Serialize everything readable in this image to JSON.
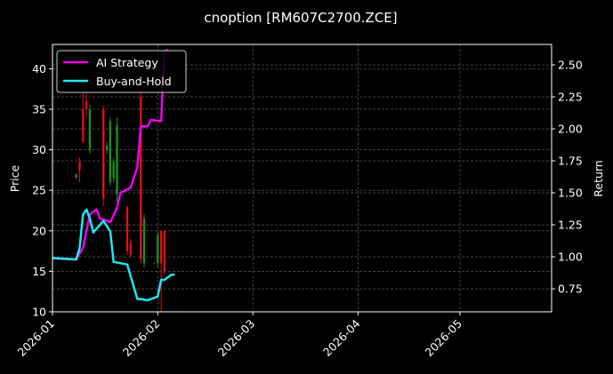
{
  "chart_data": {
    "type": "line",
    "title": "cnoption [RM607C2700.ZCE]",
    "xlabel": "",
    "ylabel": "Price",
    "y2label": "Return",
    "background": "#000000",
    "grid": true,
    "legend_position": "top-left",
    "xlim": [
      "2026-01-01",
      "2026-05-28"
    ],
    "ylim": [
      10,
      43
    ],
    "y2lim": [
      0.57,
      2.66
    ],
    "x_ticks": [
      "2026-01",
      "2026-02",
      "2026-03",
      "2026-04",
      "2026-05"
    ],
    "y_ticks": [
      10,
      15,
      20,
      25,
      30,
      35,
      40
    ],
    "y2_ticks": [
      0.75,
      1.0,
      1.25,
      1.5,
      1.75,
      2.0,
      2.25,
      2.5
    ],
    "candles": {
      "up_color": "#1e8f1e",
      "down_color": "#e01010",
      "data": [
        {
          "date": "2026-01-08",
          "open": 26.5,
          "high": 27.0,
          "low": 26.5,
          "close": 27.0
        },
        {
          "date": "2026-01-09",
          "open": 28.5,
          "high": 29.0,
          "low": 26.0,
          "close": 27.5
        },
        {
          "date": "2026-01-10",
          "open": 35.0,
          "high": 37.0,
          "low": 30.8,
          "close": 31.0
        },
        {
          "date": "2026-01-11",
          "open": 36.0,
          "high": 37.0,
          "low": 34.0,
          "close": 35.0
        },
        {
          "date": "2026-01-12",
          "open": 30.0,
          "high": 35.5,
          "low": 29.5,
          "close": 35.0
        },
        {
          "date": "2026-01-16",
          "open": 35.0,
          "high": 35.5,
          "low": 23.0,
          "close": 24.0
        },
        {
          "date": "2026-01-17",
          "open": 30.0,
          "high": 31.0,
          "low": 29.5,
          "close": 30.5
        },
        {
          "date": "2026-01-18",
          "open": 26.0,
          "high": 34.0,
          "low": 25.5,
          "close": 33.5
        },
        {
          "date": "2026-01-19",
          "open": 26.5,
          "high": 29.0,
          "low": 26.0,
          "close": 28.5
        },
        {
          "date": "2026-01-20",
          "open": 24.5,
          "high": 34.0,
          "low": 23.5,
          "close": 33.0
        },
        {
          "date": "2026-01-23",
          "open": 23.0,
          "high": 23.0,
          "low": 17.0,
          "close": 17.5
        },
        {
          "date": "2026-01-24",
          "open": 18.5,
          "high": 19.0,
          "low": 16.8,
          "close": 17.0
        },
        {
          "date": "2026-01-27",
          "open": 36.5,
          "high": 37.5,
          "low": 16.0,
          "close": 16.5
        },
        {
          "date": "2026-01-28",
          "open": 16.0,
          "high": 22.0,
          "low": 15.5,
          "close": 21.5
        },
        {
          "date": "2026-01-31",
          "open": 16.0,
          "high": 16.0,
          "low": 16.0,
          "close": 16.0
        },
        {
          "date": "2026-02-01",
          "open": 16.0,
          "high": 20.0,
          "low": 15.5,
          "close": 19.5
        },
        {
          "date": "2026-02-02",
          "open": 20.0,
          "high": 20.0,
          "low": 10.0,
          "close": 16.0
        },
        {
          "date": "2026-02-03",
          "open": 20.0,
          "high": 20.0,
          "low": 14.5,
          "close": 15.0
        }
      ]
    },
    "series": [
      {
        "name": "AI Strategy",
        "color": "#ee00ee",
        "axis": "right",
        "x": [
          "2026-01-01",
          "2026-01-03",
          "2026-01-08",
          "2026-01-10",
          "2026-01-12",
          "2026-01-14",
          "2026-01-15",
          "2026-01-17",
          "2026-01-18",
          "2026-01-20",
          "2026-01-21",
          "2026-01-24",
          "2026-01-26",
          "2026-01-27",
          "2026-01-29",
          "2026-01-30",
          "2026-02-02",
          "2026-02-03",
          "2026-02-04"
        ],
        "values": [
          0.99,
          0.985,
          0.98,
          1.07,
          1.33,
          1.37,
          1.3,
          1.28,
          1.27,
          1.38,
          1.5,
          1.54,
          1.7,
          2.02,
          2.02,
          2.07,
          2.06,
          2.6,
          2.62
        ]
      },
      {
        "name": "Buy-and-Hold",
        "color": "#22e5f0",
        "axis": "right",
        "x": [
          "2026-01-01",
          "2026-01-08",
          "2026-01-09",
          "2026-01-10",
          "2026-01-11",
          "2026-01-12",
          "2026-01-13",
          "2026-01-16",
          "2026-01-18",
          "2026-01-19",
          "2026-01-23",
          "2026-01-26",
          "2026-01-27",
          "2026-01-29",
          "2026-01-30",
          "2026-01-31",
          "2026-02-01",
          "2026-02-02",
          "2026-02-03",
          "2026-02-05",
          "2026-02-06"
        ],
        "values": [
          0.99,
          0.98,
          1.07,
          1.33,
          1.37,
          1.3,
          1.19,
          1.28,
          1.2,
          0.96,
          0.94,
          0.67,
          0.67,
          0.66,
          0.67,
          0.68,
          0.69,
          0.82,
          0.82,
          0.86,
          0.86
        ]
      }
    ]
  }
}
